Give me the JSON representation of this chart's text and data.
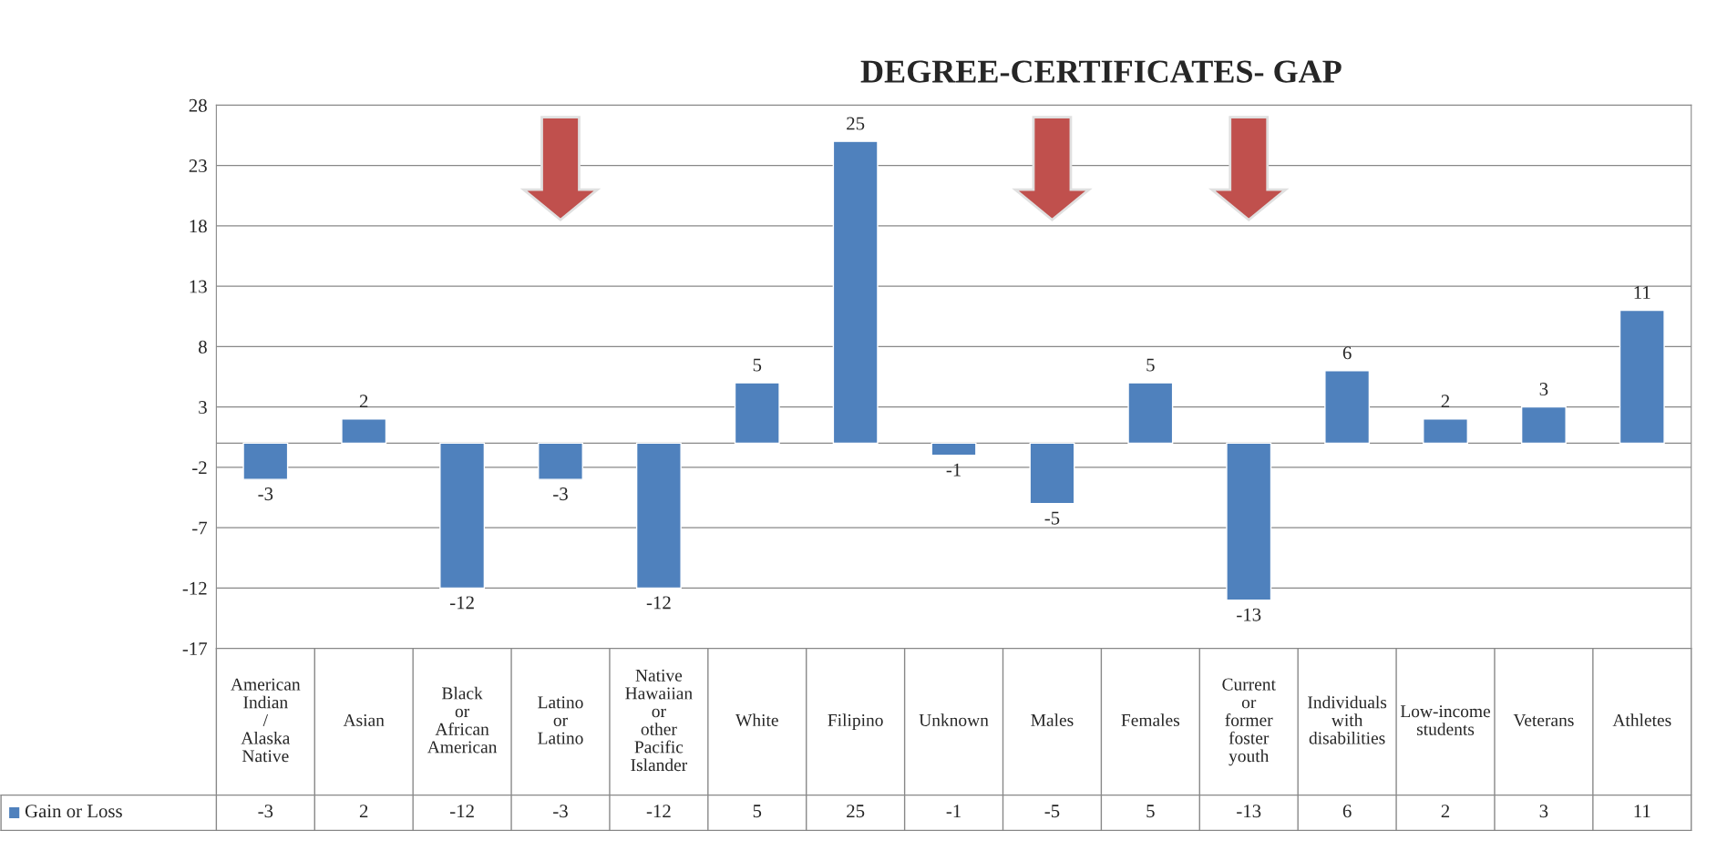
{
  "chart_data": {
    "type": "bar",
    "title": "DEGREE-CERTIFICATES- GAP",
    "categories": [
      "American Indian / Alaska Native",
      "Asian",
      "Black or African American",
      "Latino or Latino",
      "Native Hawaiian or other Pacific Islander",
      "White",
      "Filipino",
      "Unknown",
      "Males",
      "Females",
      "Current or former foster youth",
      "Individuals with disabilities",
      "Low-income students",
      "Veterans",
      "Athletes"
    ],
    "series": [
      {
        "name": "Gain or Loss",
        "color": "#4f81bd",
        "values": [
          -3,
          2,
          -12,
          -3,
          -12,
          5,
          25,
          -1,
          -5,
          5,
          -13,
          6,
          2,
          3,
          11
        ],
        "value_labels": [
          "-3",
          "2",
          "-12",
          "-3",
          "-12",
          "5",
          "25",
          "-1",
          "-5",
          "5",
          "-13",
          "6",
          "2",
          "3",
          "11"
        ]
      }
    ],
    "ylim": [
      -17,
      28
    ],
    "yticks": [
      -17,
      -12,
      -7,
      -2,
      3,
      8,
      13,
      18,
      23,
      28
    ],
    "grid": "y",
    "legend": "bottom",
    "annotations": [
      "-3",
      "2",
      "-12",
      "-3",
      "-12",
      "5",
      "25",
      "-1",
      "-5",
      "5",
      "-13",
      "6",
      "2",
      "3",
      "11"
    ]
  }
}
